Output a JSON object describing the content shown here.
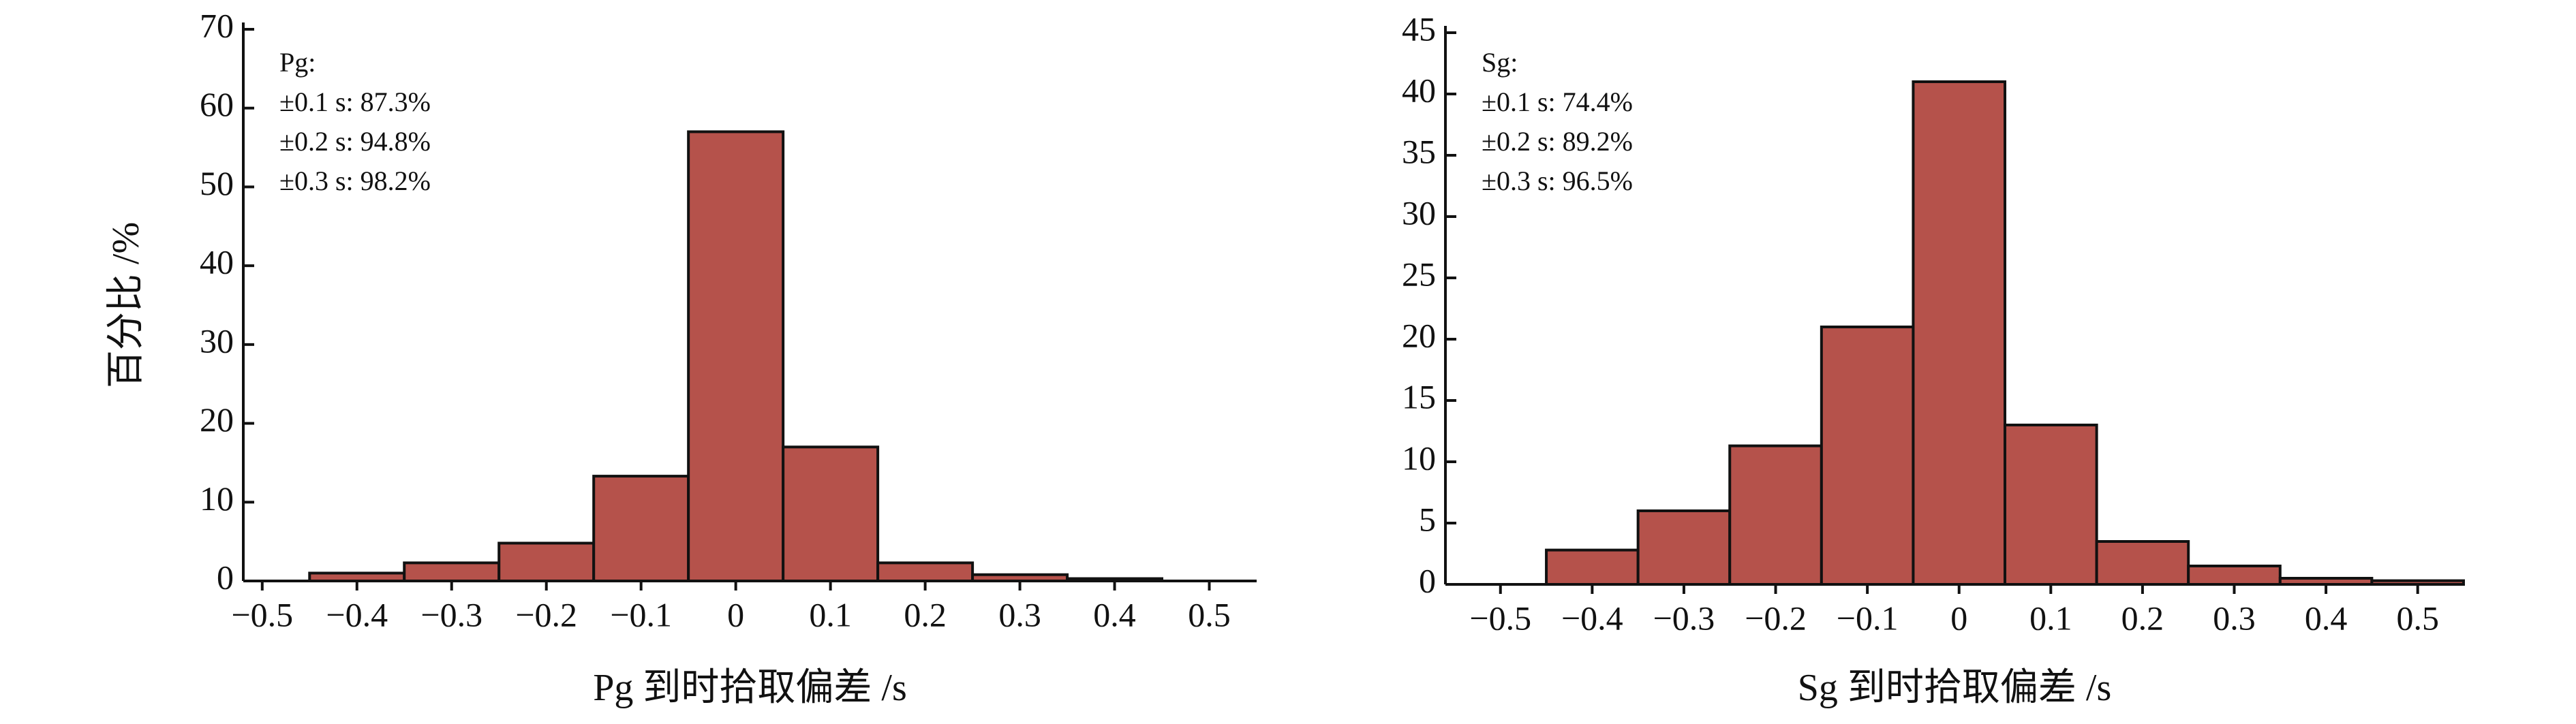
{
  "chart_data": [
    {
      "type": "histogram",
      "xlabel": "Pg 到时拾取偏差 /s",
      "ylabel": "百分比 /%",
      "color": "#b5524b",
      "annotations": [
        "Pg:",
        "±0.1 s: 87.3%",
        "±0.2 s: 94.8%",
        "±0.3 s: 98.2%"
      ],
      "bins": [
        -0.55,
        -0.45,
        -0.35,
        -0.25,
        -0.15,
        -0.05,
        0.05,
        0.15,
        0.25,
        0.35,
        0.45,
        0.55
      ],
      "values": [
        0,
        1,
        2.3,
        4.8,
        13.3,
        57,
        17,
        2.3,
        0.8,
        0.3,
        0
      ],
      "xlim": [
        -0.52,
        0.55
      ],
      "ylim": [
        0,
        70
      ],
      "xticks": [
        {
          "value": -0.5,
          "label": "−0.5"
        },
        {
          "value": -0.4,
          "label": "−0.4"
        },
        {
          "value": -0.3,
          "label": "−0.3"
        },
        {
          "value": -0.2,
          "label": "−0.2"
        },
        {
          "value": -0.1,
          "label": "−0.1"
        },
        0,
        0.1,
        0.2,
        0.3,
        0.4,
        0.5
      ],
      "yticks": [
        0,
        10,
        20,
        30,
        40,
        50,
        60,
        70
      ]
    },
    {
      "type": "histogram",
      "xlabel": "Sg 到时拾取偏差 /s",
      "color": "#b5524b",
      "annotations": [
        "Sg:",
        "±0.1 s: 74.4%",
        "±0.2 s: 89.2%",
        "±0.3 s: 96.5%"
      ],
      "bins": [
        -0.55,
        -0.45,
        -0.35,
        -0.25,
        -0.15,
        -0.05,
        0.05,
        0.15,
        0.25,
        0.35,
        0.45,
        0.55
      ],
      "values": [
        0,
        2.8,
        6,
        11.3,
        21,
        41,
        13,
        3.5,
        1.5,
        0.5,
        0.3
      ],
      "xlim": [
        -0.56,
        0.55
      ],
      "ylim": [
        0,
        45
      ],
      "xticks": [
        {
          "value": -0.5,
          "label": "−0.5"
        },
        {
          "value": -0.4,
          "label": "−0.4"
        },
        {
          "value": -0.3,
          "label": "−0.3"
        },
        {
          "value": -0.2,
          "label": "−0.2"
        },
        {
          "value": -0.1,
          "label": "−0.1"
        },
        0,
        0.1,
        0.2,
        0.3,
        0.4,
        0.5
      ],
      "yticks": [
        0,
        5,
        10,
        15,
        20,
        25,
        30,
        35,
        40,
        45
      ]
    }
  ]
}
